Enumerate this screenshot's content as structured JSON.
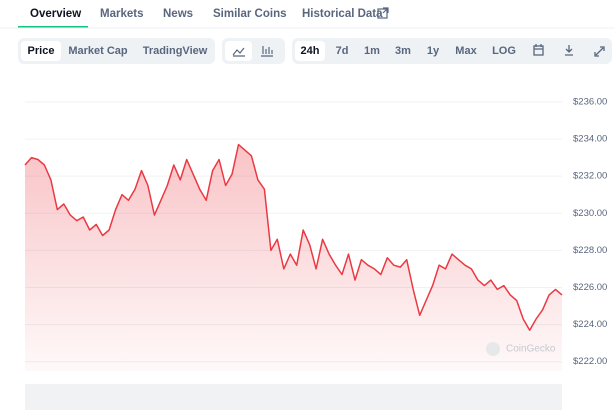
{
  "tabs": [
    "Overview",
    "Markets",
    "News",
    "Similar Coins",
    "Historical Data"
  ],
  "chart_modes": [
    "Price",
    "Market Cap",
    "TradingView"
  ],
  "ranges": [
    "24h",
    "7d",
    "1m",
    "3m",
    "1y",
    "Max",
    "LOG"
  ],
  "watermark": "CoinGecko",
  "chart_data": {
    "type": "line",
    "color": "#ea3943",
    "values": [
      232.6,
      233.0,
      232.9,
      232.6,
      231.8,
      230.2,
      230.5,
      229.9,
      229.6,
      229.8,
      229.1,
      229.4,
      228.8,
      229.1,
      230.2,
      231.0,
      230.7,
      231.3,
      232.3,
      231.5,
      229.9,
      230.7,
      231.5,
      232.6,
      231.8,
      232.9,
      232.1,
      231.3,
      230.7,
      232.3,
      232.9,
      231.5,
      232.1,
      233.7,
      233.4,
      233.1,
      231.8,
      231.3,
      228.0,
      228.6,
      227.0,
      227.8,
      227.2,
      229.1,
      228.3,
      227.0,
      228.6,
      227.8,
      227.2,
      226.7,
      227.8,
      226.4,
      227.5,
      227.2,
      227.0,
      226.7,
      227.6,
      227.2,
      227.1,
      227.5,
      225.9,
      224.5,
      225.3,
      226.1,
      227.2,
      227.0,
      227.8,
      227.5,
      227.2,
      227.0,
      226.4,
      226.1,
      226.4,
      225.9,
      226.1,
      225.6,
      225.3,
      224.3,
      223.7,
      224.3,
      224.8,
      225.6,
      225.9,
      225.6
    ],
    "ylim": [
      221.5,
      237
    ],
    "yticks": [
      {
        "value": 222,
        "label": "$222.00"
      },
      {
        "value": 224,
        "label": "$224.00"
      },
      {
        "value": 226,
        "label": "$226.00"
      },
      {
        "value": 228,
        "label": "$228.00"
      },
      {
        "value": 230,
        "label": "$230.00"
      },
      {
        "value": 232,
        "label": "$232.00"
      },
      {
        "value": 234,
        "label": "$234.00"
      },
      {
        "value": 236,
        "label": "$236.00"
      }
    ],
    "grid": true
  }
}
